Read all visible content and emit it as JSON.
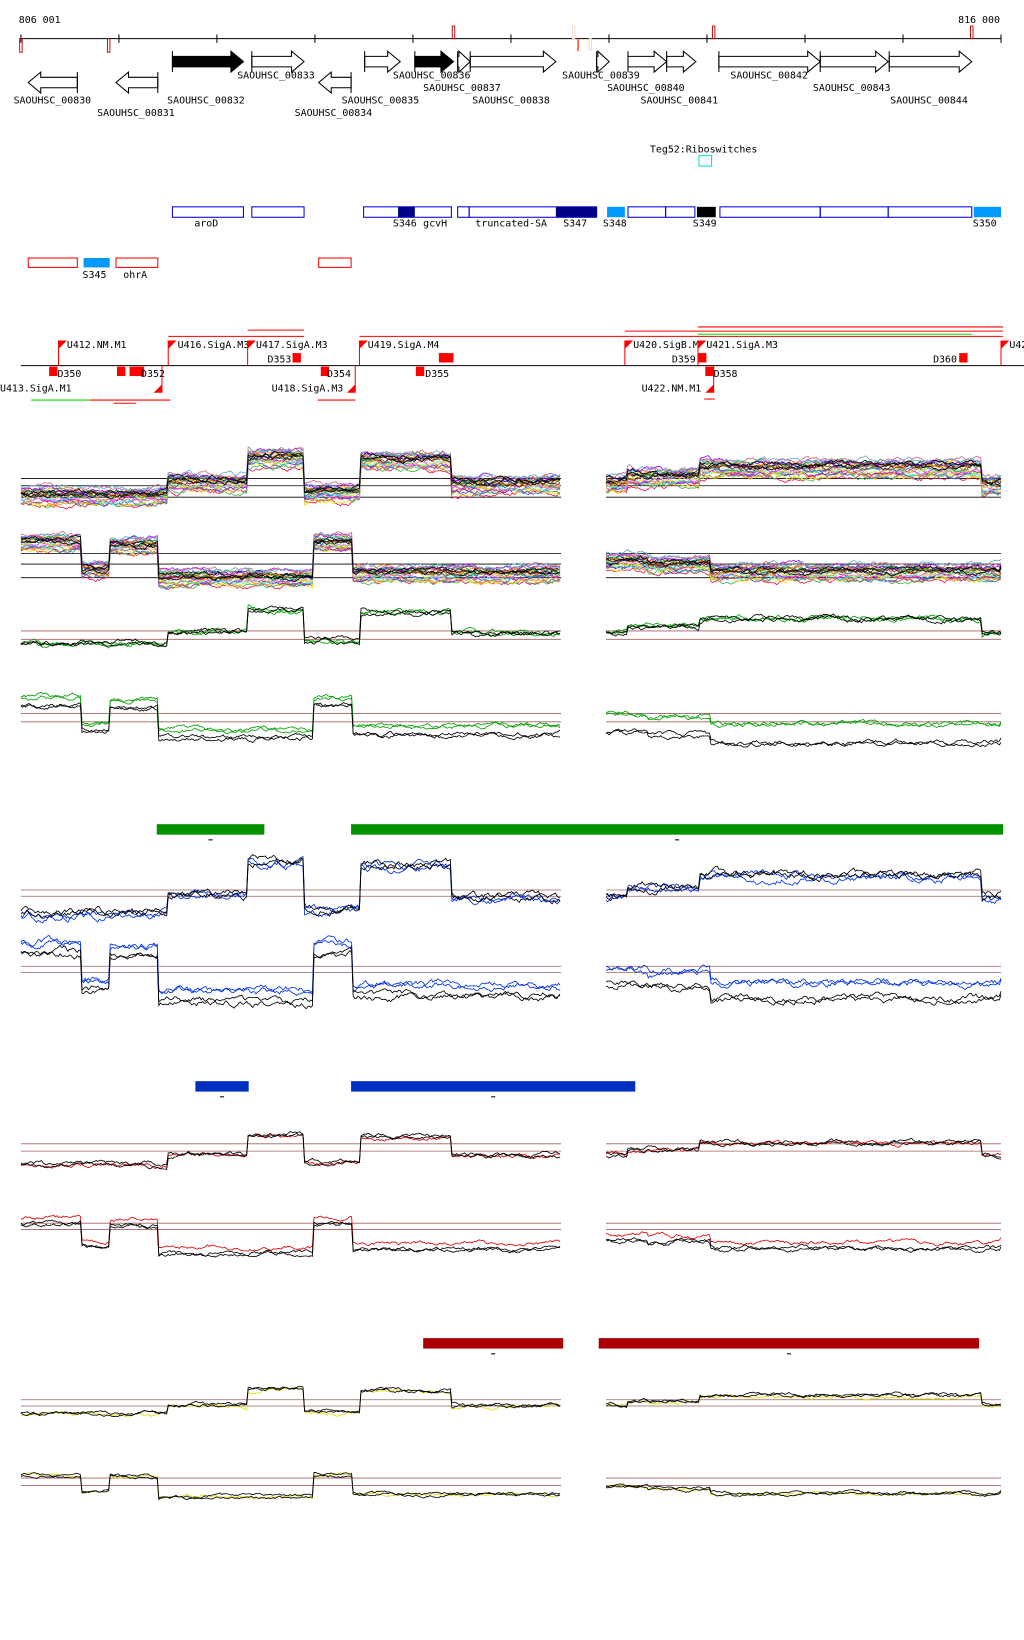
{
  "ruler": {
    "start_label": "806 001",
    "end_label": "816 000"
  },
  "genes": [
    {
      "name": "SAOUHSC_00830",
      "strand": "-",
      "fill": "none"
    },
    {
      "name": "SAOUHSC_00831",
      "strand": "-",
      "fill": "none"
    },
    {
      "name": "SAOUHSC_00832",
      "strand": "+",
      "fill": "black"
    },
    {
      "name": "SAOUHSC_00833",
      "strand": "+",
      "fill": "none"
    },
    {
      "name": "SAOUHSC_00834",
      "strand": "-",
      "fill": "none"
    },
    {
      "name": "SAOUHSC_00835",
      "strand": "+",
      "fill": "none"
    },
    {
      "name": "SAOUHSC_00836",
      "strand": "+",
      "fill": "black"
    },
    {
      "name": "SAOUHSC_00837",
      "strand": "+",
      "fill": "none"
    },
    {
      "name": "SAOUHSC_00838",
      "strand": "+",
      "fill": "none"
    },
    {
      "name": "SAOUHSC_00839",
      "strand": "+",
      "fill": "none"
    },
    {
      "name": "SAOUHSC_00840",
      "strand": "+",
      "fill": "none"
    },
    {
      "name": "SAOUHSC_00841",
      "strand": "+",
      "fill": "none"
    },
    {
      "name": "SAOUHSC_00842",
      "strand": "+",
      "fill": "none"
    },
    {
      "name": "SAOUHSC_00843",
      "strand": "+",
      "fill": "none"
    },
    {
      "name": "SAOUHSC_00844",
      "strand": "+",
      "fill": "none"
    }
  ],
  "riboswitch": {
    "label": "Teg52:Riboswitches",
    "color": "#00e0e0"
  },
  "features_plus": [
    "aroD",
    "S346",
    "gcvH",
    "truncated-SA",
    "S347",
    "S348",
    "S349",
    "S350"
  ],
  "features_minus": [
    "S345",
    "ohrA"
  ],
  "tss_above": [
    "U412.NM.M1",
    "U416.SigA.M3",
    "U417.SigA.M3",
    "U419.SigA.M4",
    "U420.SigB.M",
    "U421.SigA.M3",
    "U42"
  ],
  "tss_below": [
    "U413.SigA.M1",
    "U418.SigA.M3",
    "U422.NM.M1"
  ],
  "d_labels": [
    "D350",
    "D352",
    "D353",
    "D354",
    "D355",
    "D359",
    "D360",
    "D358"
  ],
  "colors": {
    "gene_outline": "#000000",
    "feature_outline": "#0000dd",
    "feature_dark": "#000088",
    "feature_light": "#0099ff",
    "tss": "#ff0000",
    "condition_green": "#009000",
    "condition_blue": "#0030c0",
    "condition_red": "#aa0000",
    "trace_green": "#00a000",
    "trace_blue": "#0030e0",
    "trace_red": "#e00000",
    "trace_yellow": "#dddd00",
    "baseline": "#a06060"
  }
}
